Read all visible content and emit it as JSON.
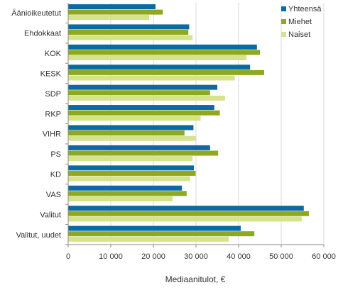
{
  "chart_data": {
    "type": "bar",
    "orientation": "horizontal",
    "title": "",
    "xlabel": "Mediaanitulot,  €",
    "ylabel": "",
    "xlim": [
      0,
      60000
    ],
    "x_ticks": [
      0,
      10000,
      20000,
      30000,
      40000,
      50000,
      60000
    ],
    "x_tick_labels": [
      "0",
      "10 000",
      "20 000",
      "30 000",
      "40 000",
      "50 000",
      "60 000"
    ],
    "grid": "vertical",
    "legend_position": "top-right",
    "categories": [
      "Äänioikeutetut",
      "Ehdokkaat",
      "KOK",
      "KESK",
      "SDP",
      "RKP",
      "VIHR",
      "PS",
      "KD",
      "VAS",
      "Valitut",
      "Valitut, uudet"
    ],
    "series": [
      {
        "name": "Yhteensä",
        "color": "#0a6aa1",
        "values": [
          20500,
          28400,
          44300,
          42700,
          35000,
          34300,
          29400,
          33300,
          29500,
          26700,
          55300,
          40500
        ]
      },
      {
        "name": "Miehet",
        "color": "#8fa81e",
        "values": [
          22200,
          28200,
          45000,
          46000,
          33300,
          35600,
          27300,
          35200,
          29900,
          27800,
          56500,
          43700
        ]
      },
      {
        "name": "Naiset",
        "color": "#d4e38c",
        "values": [
          19000,
          29200,
          41800,
          39100,
          36800,
          31100,
          30000,
          29200,
          28600,
          24500,
          54800,
          37700
        ]
      }
    ]
  }
}
